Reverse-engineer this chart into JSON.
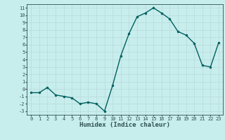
{
  "x": [
    0,
    1,
    2,
    3,
    4,
    5,
    6,
    7,
    8,
    9,
    10,
    11,
    12,
    13,
    14,
    15,
    16,
    17,
    18,
    19,
    20,
    21,
    22,
    23
  ],
  "y": [
    -0.5,
    -0.5,
    0.2,
    -0.8,
    -1.0,
    -1.2,
    -2.0,
    -1.8,
    -2.0,
    -3.0,
    0.5,
    4.5,
    7.5,
    9.8,
    10.3,
    11.0,
    10.3,
    9.5,
    7.8,
    7.3,
    6.2,
    3.2,
    3.0,
    6.3
  ],
  "line_color": "#006060",
  "marker_color": "#006060",
  "bg_color": "#c8eded",
  "grid_color": "#b8dada",
  "xlabel": "Humidex (Indice chaleur)",
  "xlim": [
    -0.5,
    23.5
  ],
  "ylim": [
    -3.5,
    11.5
  ],
  "yticks": [
    -3,
    -2,
    -1,
    0,
    1,
    2,
    3,
    4,
    5,
    6,
    7,
    8,
    9,
    10,
    11
  ],
  "xticks": [
    0,
    1,
    2,
    3,
    4,
    5,
    6,
    7,
    8,
    9,
    10,
    11,
    12,
    13,
    14,
    15,
    16,
    17,
    18,
    19,
    20,
    21,
    22,
    23
  ],
  "font_color": "#2f4f4f",
  "linewidth": 1.0,
  "markersize": 2.0,
  "tick_fontsize": 5.0,
  "xlabel_fontsize": 6.5
}
